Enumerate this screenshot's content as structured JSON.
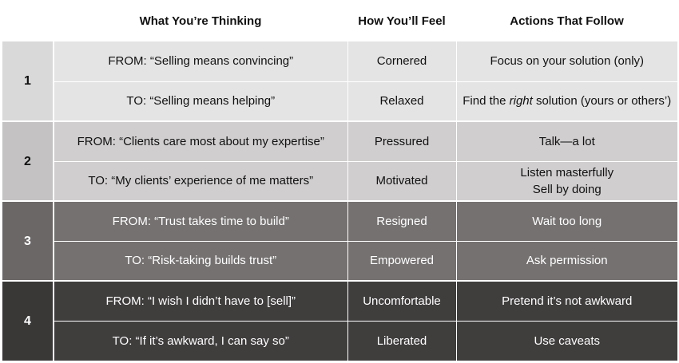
{
  "headers": {
    "blank": "",
    "thinking": "What You’re Thinking",
    "feel": "How You’ll Feel",
    "actions": "Actions That Follow"
  },
  "groups": [
    {
      "number": "1",
      "from": {
        "thinking": "FROM: “Selling means convincing”",
        "feel": "Cornered",
        "action": "Focus on your solution (only)"
      },
      "to": {
        "thinking": "TO: “Selling means helping”",
        "feel": "Relaxed",
        "action_pre": "Find the ",
        "action_em": "right",
        "action_post": " solution (yours or others’)"
      }
    },
    {
      "number": "2",
      "from": {
        "thinking": "FROM: “Clients care most about my expertise”",
        "feel": "Pressured",
        "action": "Talk—a lot"
      },
      "to": {
        "thinking": "TO: “My clients’ experience of me matters”",
        "feel": "Motivated",
        "action_line1": "Listen masterfully",
        "action_line2": "Sell by doing"
      }
    },
    {
      "number": "3",
      "from": {
        "thinking": "FROM: “Trust takes time to build”",
        "feel": "Resigned",
        "action": "Wait too long"
      },
      "to": {
        "thinking": "TO: “Risk-taking builds trust”",
        "feel": "Empowered",
        "action": "Ask permission"
      }
    },
    {
      "number": "4",
      "from": {
        "thinking": "FROM: “I wish I didn’t have to [sell]”",
        "feel": "Uncomfortable",
        "action": "Pretend it’s not awkward"
      },
      "to": {
        "thinking": "TO: “If it’s awkward, I can say so”",
        "feel": "Liberated",
        "action": "Use caveats"
      }
    }
  ],
  "colors": {
    "group1": "#e4e4e4",
    "group2": "#d0cece",
    "group3": "#757171",
    "group4": "#403d3d"
  }
}
